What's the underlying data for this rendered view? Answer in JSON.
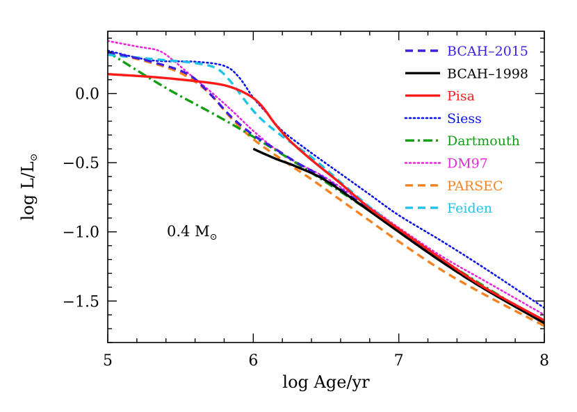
{
  "chart_data": {
    "type": "line",
    "title": "",
    "xlabel": "log Age/yr",
    "ylabel_main": "log L/L",
    "ylabel_sub": "⊙",
    "annotation": {
      "text": "0.4 M",
      "sub": "⊙"
    },
    "xlim": [
      5,
      8
    ],
    "ylim": [
      -1.8,
      0.45
    ],
    "x_ticks": [
      5,
      6,
      7,
      8
    ],
    "x_tick_labels": [
      "5",
      "6",
      "7",
      "8"
    ],
    "y_ticks": [
      0.0,
      -0.5,
      -1.0,
      -1.5
    ],
    "y_tick_labels": [
      "0.0",
      "−0.5",
      "−1.0",
      "−1.5"
    ],
    "legend_position": "top-right",
    "series": [
      {
        "name": "BCAH–2015",
        "color": "#3d1ee0",
        "style": "dashed",
        "x": [
          5.0,
          5.3,
          5.55,
          5.7,
          5.85,
          6.0,
          6.15,
          6.3,
          6.5,
          6.8,
          7.0,
          7.3,
          7.6,
          8.0
        ],
        "y": [
          0.3,
          0.23,
          0.14,
          0.0,
          -0.17,
          -0.3,
          -0.4,
          -0.5,
          -0.62,
          -0.84,
          -1.0,
          -1.22,
          -1.42,
          -1.65
        ]
      },
      {
        "name": "BCAH–1998",
        "color": "#000000",
        "style": "solid",
        "x": [
          6.0,
          6.15,
          6.3,
          6.5,
          6.8,
          7.0,
          7.3,
          7.6,
          8.0
        ],
        "y": [
          -0.4,
          -0.47,
          -0.53,
          -0.63,
          -0.85,
          -1.0,
          -1.22,
          -1.42,
          -1.66
        ]
      },
      {
        "name": "Pisa",
        "color": "#ff1a1a",
        "style": "solid",
        "x": [
          5.0,
          5.3,
          5.6,
          5.8,
          5.95,
          6.05,
          6.15,
          6.25,
          6.4,
          6.6,
          6.8,
          7.0,
          7.3,
          7.6,
          8.0
        ],
        "y": [
          0.14,
          0.12,
          0.09,
          0.06,
          0.0,
          -0.08,
          -0.22,
          -0.34,
          -0.48,
          -0.65,
          -0.83,
          -0.98,
          -1.2,
          -1.41,
          -1.64
        ]
      },
      {
        "name": "Siess",
        "color": "#0a14e6",
        "style": "dotted",
        "x": [
          5.0,
          5.3,
          5.6,
          5.8,
          5.9,
          6.0,
          6.1,
          6.2,
          6.4,
          6.6,
          6.8,
          7.0,
          7.3,
          7.6,
          8.0
        ],
        "y": [
          0.31,
          0.24,
          0.23,
          0.2,
          0.12,
          -0.03,
          -0.15,
          -0.27,
          -0.43,
          -0.58,
          -0.73,
          -0.88,
          -1.07,
          -1.27,
          -1.55
        ]
      },
      {
        "name": "Dartmouth",
        "color": "#129e12",
        "style": "dashdot",
        "x": [
          5.0,
          5.4,
          5.8,
          6.2,
          6.6,
          7.0,
          7.4,
          8.0
        ],
        "y": [
          0.3,
          0.04,
          -0.19,
          -0.44,
          -0.71,
          -0.99,
          -1.27,
          -1.66
        ]
      },
      {
        "name": "DM97",
        "color": "#e826dd",
        "style": "dotted",
        "x": [
          5.0,
          5.2,
          5.35,
          5.45,
          5.55,
          5.7,
          5.85,
          6.0,
          6.15,
          6.3,
          6.5,
          6.8,
          7.0,
          7.3,
          7.6,
          8.0
        ],
        "y": [
          0.38,
          0.34,
          0.31,
          0.24,
          0.15,
          0.02,
          -0.12,
          -0.27,
          -0.4,
          -0.5,
          -0.61,
          -0.82,
          -0.97,
          -1.18,
          -1.36,
          -1.6
        ]
      },
      {
        "name": "PARSEC",
        "color": "#f5821f",
        "style": "dashed",
        "x": [
          5.0,
          5.2,
          5.4,
          5.55,
          5.7,
          5.85,
          6.0,
          6.2,
          6.4,
          6.6,
          6.8,
          7.0,
          7.3,
          7.6,
          8.0
        ],
        "y": [
          0.3,
          0.25,
          0.19,
          0.12,
          0.0,
          -0.18,
          -0.33,
          -0.48,
          -0.62,
          -0.77,
          -0.92,
          -1.07,
          -1.28,
          -1.46,
          -1.68
        ]
      },
      {
        "name": "Feiden",
        "color": "#1ec4e8",
        "style": "dashed",
        "x": [
          5.0,
          5.3,
          5.6,
          5.75,
          5.85,
          5.95,
          6.05,
          6.2,
          6.4,
          6.6,
          6.8,
          7.0,
          7.3,
          7.6,
          8.0
        ],
        "y": [
          0.28,
          0.25,
          0.22,
          0.18,
          0.08,
          -0.06,
          -0.18,
          -0.31,
          -0.46,
          -0.64,
          -0.82,
          -0.98,
          -1.2,
          -1.41,
          -1.65
        ]
      }
    ]
  }
}
